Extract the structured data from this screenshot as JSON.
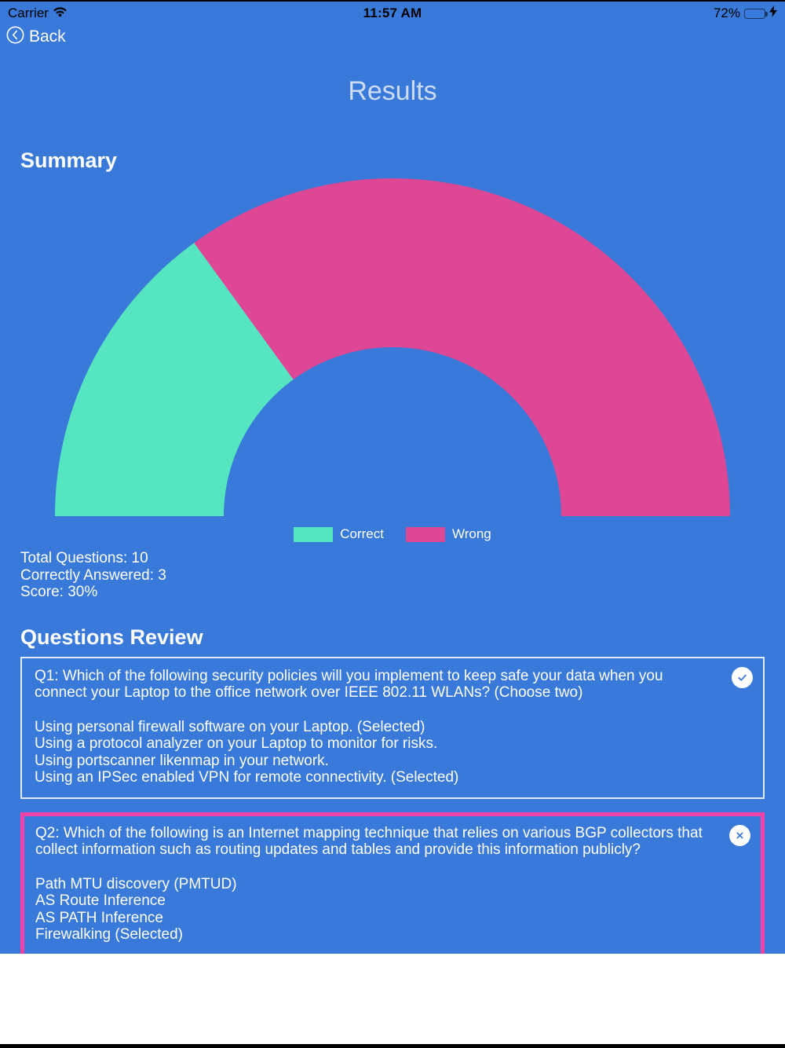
{
  "colors": {
    "app_background": "#3879D9",
    "correct_green": "#55E6C1",
    "wrong_pink": "#DE4795",
    "wrong_card_border": "#F342A7",
    "title_tint": "#CEDCF2",
    "battery_green": "#4CD964"
  },
  "status_bar": {
    "carrier": "Carrier",
    "time": "11:57 AM",
    "battery_percent": "72%",
    "battery_level": 72
  },
  "nav": {
    "back_label": "Back"
  },
  "page": {
    "title": "Results",
    "summary_heading": "Summary",
    "review_heading": "Questions Review"
  },
  "chart_data": {
    "type": "pie",
    "subtype": "half-donut",
    "title": "Summary",
    "categories": [
      "Correct",
      "Wrong"
    ],
    "values": [
      3,
      7
    ],
    "percentages": [
      30,
      70
    ],
    "total": 10,
    "colors": {
      "correct": "#55E6C1",
      "wrong": "#DE4795"
    },
    "legend": [
      "Correct",
      "Wrong"
    ],
    "legend_position": "bottom-center",
    "start_angle_deg": 180,
    "sweep_deg": 180,
    "inner_radius_ratio": 0.5
  },
  "summary": {
    "total": "Total Questions: 10",
    "correct": "Correctly Answered: 3",
    "score": "Score: 30%"
  },
  "questions": [
    {
      "id": "Q1",
      "result": "correct",
      "result_icon": "check-circle",
      "text": "Q1: Which of the following security policies will you implement to keep safe your data when you connect your Laptop to the office network over IEEE 802.11 WLANs? (Choose two)",
      "options": [
        "Using personal firewall software on your Laptop. (Selected)",
        "Using a protocol analyzer on your Laptop to monitor for risks.",
        "Using portscanner likenmap in your network.",
        "Using an IPSec enabled VPN for remote connectivity. (Selected)"
      ]
    },
    {
      "id": "Q2",
      "result": "wrong",
      "result_icon": "x-circle",
      "text": "Q2: Which of the following is an Internet mapping technique that relies on various BGP collectors that collect information such as routing updates and tables and provide this information publicly?",
      "options": [
        "Path MTU discovery (PMTUD)",
        "AS Route Inference",
        "AS PATH Inference",
        "Firewalking (Selected)"
      ]
    }
  ]
}
